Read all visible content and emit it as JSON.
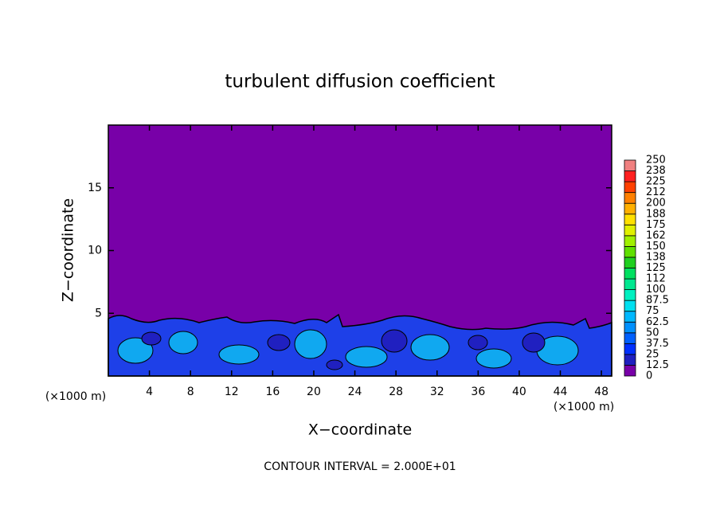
{
  "chart_data": {
    "type": "contour",
    "title": "turbulent diffusion coefficient",
    "x_label": "X−coordinate",
    "y_label": "Z−coordinate",
    "x_unit_left": "(×1000 m)",
    "x_unit_right": "(×1000 m)",
    "annotation": "CONTOUR INTERVAL = 2.000E+01",
    "xlim": [
      0,
      49
    ],
    "ylim": [
      0,
      20
    ],
    "xticks": [
      4,
      8,
      12,
      16,
      20,
      24,
      28,
      32,
      36,
      40,
      44,
      48
    ],
    "yticks": [
      5,
      10,
      15
    ],
    "colorbar": {
      "ticks": [
        0,
        12.5,
        25,
        37.5,
        50,
        62.5,
        75,
        87.5,
        100,
        112,
        125,
        138,
        150,
        162,
        175,
        188,
        200,
        212,
        225,
        238,
        250
      ],
      "colors": [
        "#7800a8",
        "#2020c0",
        "#0030ff",
        "#0060ff",
        "#0090ff",
        "#00b8ff",
        "#00e0f0",
        "#00f0c0",
        "#00e890",
        "#00e060",
        "#20d020",
        "#60e000",
        "#a0f000",
        "#e0f000",
        "#ffe000",
        "#ffb000",
        "#ff8000",
        "#ff4000",
        "#ff2020",
        "#f08080"
      ]
    }
  }
}
